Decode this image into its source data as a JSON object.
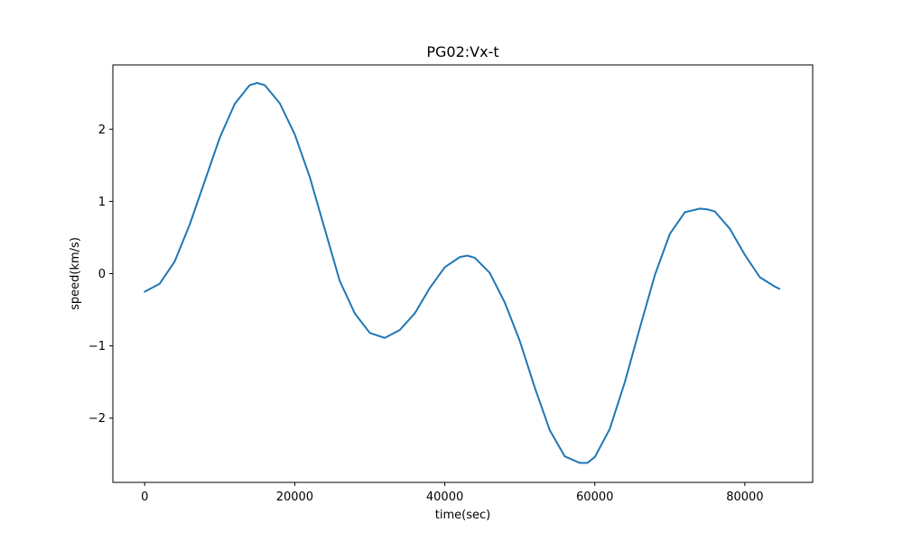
{
  "chart_data": {
    "type": "line",
    "title": "PG02:Vx-t",
    "xlabel": "time(sec)",
    "ylabel": "speed(km/s)",
    "xlim": [
      -4240,
      89040
    ],
    "ylim": [
      -2.89,
      2.89
    ],
    "xticks": [
      0,
      20000,
      40000,
      60000,
      80000
    ],
    "xtick_labels": [
      "0",
      "20000",
      "40000",
      "60000",
      "80000"
    ],
    "yticks": [
      -2,
      -1,
      0,
      1,
      2
    ],
    "ytick_labels": [
      "−2",
      "−1",
      "0",
      "1",
      "2"
    ],
    "grid": false,
    "line_color": "#1f77b4",
    "series": [
      {
        "name": "",
        "x": [
          0,
          2000,
          4000,
          6000,
          8000,
          10000,
          12000,
          14000,
          15000,
          16000,
          18000,
          20000,
          22000,
          24000,
          26000,
          28000,
          30000,
          32000,
          34000,
          36000,
          38000,
          40000,
          42000,
          43000,
          44000,
          46000,
          48000,
          50000,
          52000,
          54000,
          56000,
          58000,
          59000,
          60000,
          62000,
          64000,
          66000,
          68000,
          70000,
          72000,
          74000,
          75000,
          76000,
          78000,
          80000,
          82000,
          84000,
          84600
        ],
        "y": [
          -0.25,
          -0.14,
          0.17,
          0.68,
          1.28,
          1.88,
          2.35,
          2.61,
          2.64,
          2.61,
          2.36,
          1.93,
          1.34,
          0.62,
          -0.1,
          -0.55,
          -0.82,
          -0.89,
          -0.78,
          -0.55,
          -0.2,
          0.09,
          0.23,
          0.25,
          0.22,
          0.01,
          -0.4,
          -0.93,
          -1.58,
          -2.17,
          -2.53,
          -2.62,
          -2.62,
          -2.54,
          -2.15,
          -1.5,
          -0.75,
          -0.02,
          0.55,
          0.85,
          0.9,
          0.89,
          0.86,
          0.62,
          0.26,
          -0.05,
          -0.18,
          -0.21
        ]
      }
    ]
  }
}
